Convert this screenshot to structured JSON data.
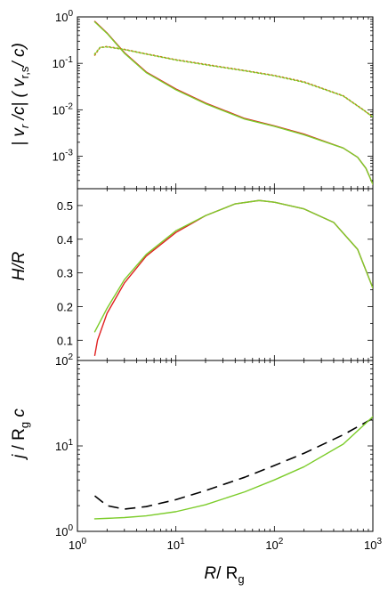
{
  "chart_data": [
    {
      "type": "line",
      "name": "top",
      "xscale": "log",
      "yscale": "log",
      "xlim": [
        1,
        1000
      ],
      "ylim": [
        0.0002,
        1
      ],
      "ylabel": "| v_r /c| ( v_r,s/ c)",
      "yticks": [
        {
          "value": 1,
          "base": "10",
          "exp": "0"
        },
        {
          "value": 0.1,
          "base": "10",
          "exp": "-1"
        },
        {
          "value": 0.01,
          "base": "10",
          "exp": "-2"
        },
        {
          "value": 0.001,
          "base": "10",
          "exp": "-3"
        }
      ],
      "series": [
        {
          "style": "solid",
          "color": "#e02020",
          "points": [
            [
              1.5,
              0.8
            ],
            [
              2,
              0.45
            ],
            [
              3,
              0.17
            ],
            [
              5,
              0.065
            ],
            [
              10,
              0.028
            ],
            [
              20,
              0.014
            ],
            [
              50,
              0.0065
            ],
            [
              100,
              0.0045
            ],
            [
              200,
              0.003
            ],
            [
              500,
              0.0015
            ],
            [
              700,
              0.00095
            ],
            [
              850,
              0.00055
            ],
            [
              1000,
              0.00025
            ]
          ]
        },
        {
          "style": "solid",
          "color": "#7ccc2a",
          "points": [
            [
              1.5,
              0.78
            ],
            [
              2,
              0.44
            ],
            [
              3,
              0.165
            ],
            [
              5,
              0.063
            ],
            [
              10,
              0.027
            ],
            [
              20,
              0.0135
            ],
            [
              50,
              0.0063
            ],
            [
              100,
              0.0044
            ],
            [
              200,
              0.0029
            ],
            [
              500,
              0.0015
            ],
            [
              700,
              0.00095
            ],
            [
              850,
              0.00055
            ],
            [
              1000,
              0.00025
            ]
          ]
        },
        {
          "style": "dotted",
          "color": "#c87818",
          "points": [
            [
              1.5,
              0.15
            ],
            [
              1.7,
              0.22
            ],
            [
              2,
              0.23
            ],
            [
              3,
              0.2
            ],
            [
              5,
              0.16
            ],
            [
              10,
              0.12
            ],
            [
              20,
              0.095
            ],
            [
              50,
              0.07
            ],
            [
              100,
              0.055
            ],
            [
              200,
              0.04
            ],
            [
              500,
              0.02
            ],
            [
              800,
              0.01
            ],
            [
              1000,
              0.007
            ]
          ]
        },
        {
          "style": "dotted",
          "color": "#7ccc2a",
          "points": [
            [
              1.5,
              0.16
            ],
            [
              1.7,
              0.22
            ],
            [
              2,
              0.225
            ],
            [
              3,
              0.198
            ],
            [
              5,
              0.158
            ],
            [
              10,
              0.118
            ],
            [
              20,
              0.093
            ],
            [
              50,
              0.069
            ],
            [
              100,
              0.054
            ],
            [
              200,
              0.039
            ],
            [
              500,
              0.0198
            ],
            [
              800,
              0.0099
            ],
            [
              1000,
              0.007
            ]
          ]
        }
      ]
    },
    {
      "type": "line",
      "name": "middle",
      "xscale": "log",
      "yscale": "linear",
      "xlim": [
        1,
        1000
      ],
      "ylim": [
        0.04,
        0.55
      ],
      "ylabel": "H/R",
      "yticks": [
        {
          "value": 0.1,
          "label": "0.1"
        },
        {
          "value": 0.2,
          "label": "0.2"
        },
        {
          "value": 0.3,
          "label": "0.3"
        },
        {
          "value": 0.4,
          "label": "0.4"
        },
        {
          "value": 0.5,
          "label": "0.5"
        }
      ],
      "series": [
        {
          "style": "solid",
          "color": "#e02020",
          "points": [
            [
              1.5,
              0.055
            ],
            [
              1.6,
              0.1
            ],
            [
              2,
              0.18
            ],
            [
              3,
              0.27
            ],
            [
              5,
              0.35
            ],
            [
              10,
              0.42
            ],
            [
              20,
              0.47
            ],
            [
              40,
              0.505
            ],
            [
              70,
              0.515
            ],
            [
              100,
              0.51
            ],
            [
              200,
              0.49
            ],
            [
              400,
              0.45
            ],
            [
              700,
              0.37
            ],
            [
              1000,
              0.255
            ]
          ]
        },
        {
          "style": "solid",
          "color": "#7ccc2a",
          "points": [
            [
              1.5,
              0.125
            ],
            [
              2,
              0.195
            ],
            [
              3,
              0.28
            ],
            [
              5,
              0.355
            ],
            [
              10,
              0.425
            ],
            [
              20,
              0.47
            ],
            [
              40,
              0.505
            ],
            [
              70,
              0.515
            ],
            [
              100,
              0.51
            ],
            [
              200,
              0.49
            ],
            [
              400,
              0.45
            ],
            [
              700,
              0.37
            ],
            [
              1000,
              0.255
            ]
          ]
        }
      ]
    },
    {
      "type": "line",
      "name": "bottom",
      "xscale": "log",
      "yscale": "log",
      "xlim": [
        1,
        1000
      ],
      "ylim": [
        1,
        100
      ],
      "ylabel": "j / R_g c",
      "xlabel": "R/ R_g",
      "yticks": [
        {
          "value": 1,
          "base": "10",
          "exp": "0"
        },
        {
          "value": 10,
          "base": "10",
          "exp": "1"
        },
        {
          "value": 100,
          "base": "10",
          "exp": "2"
        }
      ],
      "xticks": [
        {
          "value": 1,
          "base": "10",
          "exp": "0"
        },
        {
          "value": 10,
          "base": "10",
          "exp": "1"
        },
        {
          "value": 100,
          "base": "10",
          "exp": "2"
        },
        {
          "value": 1000,
          "base": "10",
          "exp": "3"
        }
      ],
      "series": [
        {
          "style": "dashed",
          "color": "#000000",
          "points": [
            [
              1.5,
              2.6
            ],
            [
              2,
              2.0
            ],
            [
              3,
              1.82
            ],
            [
              5,
              1.95
            ],
            [
              10,
              2.35
            ],
            [
              20,
              3.0
            ],
            [
              50,
              4.3
            ],
            [
              100,
              5.9
            ],
            [
              200,
              8.2
            ],
            [
              500,
              13.5
            ],
            [
              1000,
              21
            ]
          ]
        },
        {
          "style": "solid",
          "color": "#7ccc2a",
          "points": [
            [
              1.5,
              1.4
            ],
            [
              2,
              1.42
            ],
            [
              3,
              1.45
            ],
            [
              5,
              1.52
            ],
            [
              10,
              1.7
            ],
            [
              20,
              2.05
            ],
            [
              50,
              2.9
            ],
            [
              100,
              4.0
            ],
            [
              200,
              5.7
            ],
            [
              500,
              10.5
            ],
            [
              1000,
              22
            ]
          ]
        }
      ]
    }
  ]
}
